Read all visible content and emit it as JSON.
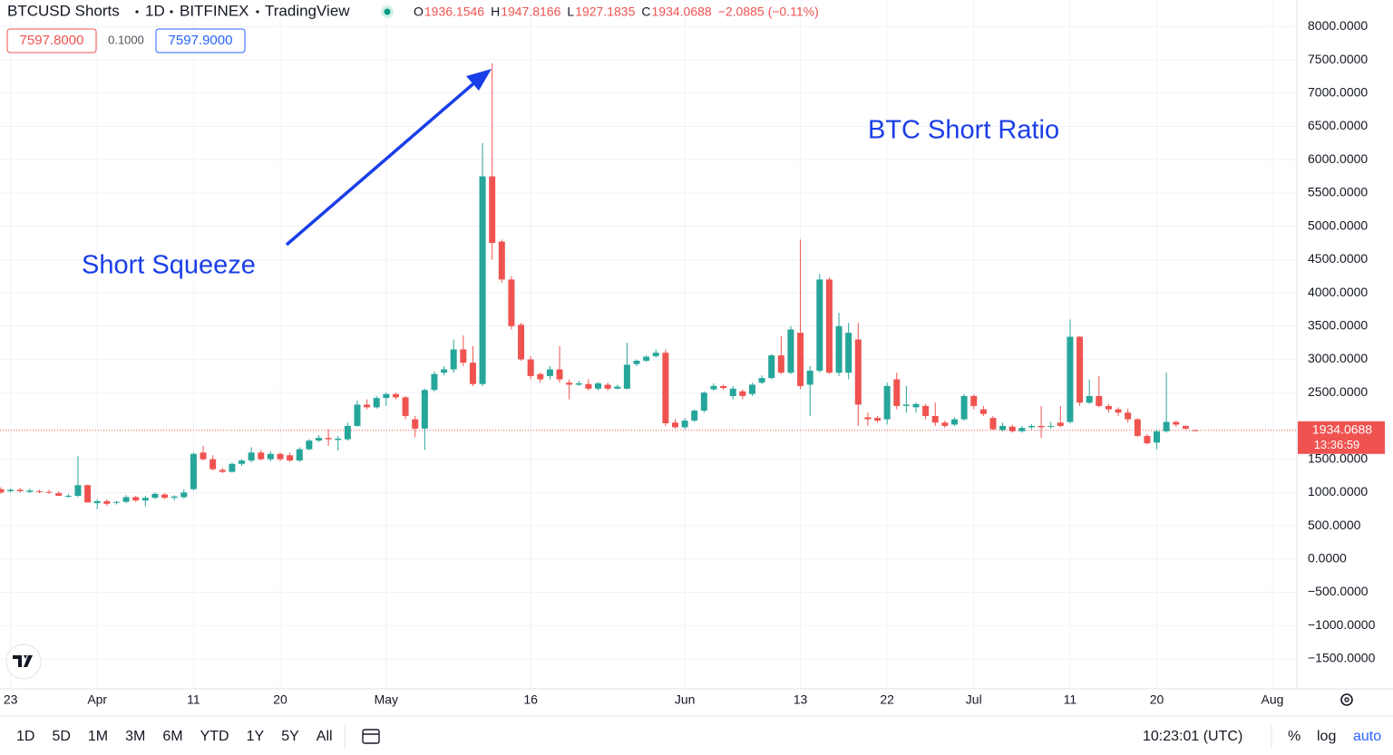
{
  "header": {
    "symbol": "BTCUSD Shorts",
    "interval": "1D",
    "exchange": "BITFINEX",
    "source": "TradingView",
    "ohlc_labels": [
      "O",
      "H",
      "L",
      "C"
    ],
    "change": "−2.0885 (−0.11%)"
  },
  "quote": {
    "bid": "7597.8000",
    "spread": "0.1000",
    "ask": "7597.9000"
  },
  "chart_data": {
    "type": "candlestick",
    "annotations": [
      "Short Squeeze",
      "BTC Short Ratio"
    ],
    "countdown": "13:36:59",
    "categories": [
      null,
      "23",
      null,
      null,
      null,
      null,
      null,
      null,
      null,
      null,
      "Apr",
      null,
      null,
      null,
      null,
      null,
      null,
      null,
      null,
      null,
      "11",
      null,
      null,
      null,
      null,
      null,
      null,
      null,
      null,
      "20",
      null,
      null,
      null,
      null,
      null,
      null,
      null,
      null,
      null,
      null,
      "May",
      null,
      null,
      null,
      null,
      null,
      null,
      null,
      null,
      null,
      null,
      null,
      null,
      null,
      null,
      "16",
      null,
      null,
      null,
      null,
      null,
      null,
      null,
      null,
      null,
      null,
      null,
      null,
      null,
      null,
      null,
      "Jun",
      null,
      null,
      null,
      null,
      null,
      null,
      null,
      null,
      null,
      null,
      null,
      "13",
      null,
      null,
      null,
      null,
      null,
      null,
      null,
      null,
      "22",
      null,
      null,
      null,
      null,
      null,
      null,
      null,
      null,
      "Jul",
      null,
      null,
      null,
      null,
      null,
      null,
      null,
      null,
      null,
      "11",
      null,
      null,
      null,
      null,
      null,
      null,
      null,
      null,
      "20",
      null,
      null,
      null,
      null,
      null,
      null,
      null,
      null,
      null,
      null,
      null,
      "Aug"
    ],
    "open": [
      1050,
      1020,
      1040,
      1010,
      1020,
      1010,
      990,
      940,
      950,
      1110,
      840,
      870,
      850,
      860,
      930,
      880,
      920,
      970,
      920,
      930,
      1050,
      1600,
      1500,
      1340,
      1310,
      1430,
      1480,
      1600,
      1500,
      1580,
      1560,
      1480,
      1650,
      1780,
      1820,
      1790,
      1800,
      2000,
      2320,
      2280,
      2420,
      2480,
      2430,
      2100,
      1960,
      2540,
      2800,
      2850,
      3150,
      2950,
      2630,
      5750,
      4770,
      4200,
      3520,
      3000,
      2780,
      2750,
      2850,
      2650,
      2620,
      2630,
      2560,
      2620,
      2560,
      2560,
      2930,
      2980,
      3050,
      3100,
      2050,
      1980,
      2080,
      2230,
      2550,
      2600,
      2450,
      2520,
      2480,
      2650,
      2720,
      3060,
      2800,
      3400,
      2620,
      2830,
      4200,
      2800,
      2800,
      3300,
      2130,
      2120,
      2100,
      2700,
      2300,
      2280,
      2300,
      2150,
      2050,
      2020,
      2100,
      2450,
      2250,
      2120,
      1940,
      1990,
      1920,
      1980,
      2000,
      1990,
      2050,
      2060,
      3340,
      2350,
      2450,
      2300,
      2250,
      2200,
      2100,
      1850,
      1750,
      1920,
      2060,
      2000,
      1936.1546,
      null,
      null,
      null,
      null,
      null,
      null,
      null,
      null
    ],
    "high": [
      1080,
      1060,
      1070,
      1060,
      1040,
      1040,
      1020,
      980,
      1550,
      1120,
      900,
      900,
      870,
      960,
      950,
      950,
      1000,
      990,
      960,
      1050,
      1600,
      1700,
      1560,
      1370,
      1450,
      1500,
      1680,
      1640,
      1620,
      1600,
      1600,
      1680,
      1800,
      1860,
      1950,
      1850,
      2050,
      2380,
      2400,
      2450,
      2500,
      2500,
      2450,
      2150,
      2560,
      2820,
      2900,
      3300,
      3360,
      3200,
      6250,
      7450,
      4800,
      4250,
      3550,
      3050,
      2800,
      2900,
      3200,
      2700,
      2680,
      2700,
      2660,
      2650,
      2620,
      3250,
      3000,
      3060,
      3150,
      3150,
      2100,
      2120,
      2250,
      2520,
      2640,
      2620,
      2600,
      2550,
      2650,
      2760,
      3080,
      3350,
      3500,
      4800,
      2900,
      4280,
      4230,
      3700,
      3550,
      3550,
      2200,
      2150,
      2650,
      2800,
      2600,
      2350,
      2330,
      2350,
      2080,
      2130,
      2480,
      2470,
      2300,
      2150,
      2050,
      2020,
      2000,
      2030,
      2300,
      2060,
      2300,
      3600,
      3350,
      2700,
      2750,
      2330,
      2280,
      2260,
      2120,
      1880,
      1950,
      2800,
      2080,
      2010,
      1947.8166,
      null,
      null,
      null,
      null,
      null,
      null,
      null,
      null
    ],
    "low": [
      980,
      1000,
      1000,
      990,
      990,
      980,
      950,
      920,
      930,
      850,
      750,
      800,
      820,
      840,
      860,
      790,
      900,
      900,
      880,
      910,
      1030,
      1480,
      1330,
      1290,
      1300,
      1400,
      1450,
      1480,
      1470,
      1470,
      1460,
      1460,
      1630,
      1760,
      1700,
      1630,
      1780,
      1990,
      2250,
      2260,
      2300,
      2400,
      2100,
      1830,
      1640,
      2520,
      2760,
      2800,
      2900,
      2600,
      2600,
      4500,
      4150,
      3450,
      2980,
      2700,
      2650,
      2700,
      2650,
      2400,
      2600,
      2530,
      2530,
      2530,
      2550,
      2550,
      2900,
      2960,
      3030,
      2000,
      1960,
      1950,
      2060,
      2200,
      2530,
      2540,
      2400,
      2400,
      2450,
      2630,
      2700,
      2780,
      2780,
      2550,
      2150,
      2800,
      2780,
      2750,
      2700,
      2000,
      2000,
      2050,
      2020,
      2250,
      2200,
      2200,
      2100,
      2000,
      1970,
      2000,
      2080,
      2250,
      2150,
      1930,
      1920,
      1900,
      1900,
      1950,
      1820,
      1960,
      1980,
      2040,
      2300,
      2330,
      2280,
      2200,
      2150,
      2050,
      1830,
      1720,
      1650,
      1900,
      1990,
      1940,
      1927.1835,
      null,
      null,
      null,
      null,
      null,
      null,
      null,
      null
    ],
    "close": [
      1000,
      1040,
      1020,
      1030,
      1010,
      1000,
      950,
      950,
      1110,
      850,
      870,
      830,
      860,
      930,
      880,
      920,
      980,
      920,
      940,
      1000,
      1580,
      1500,
      1350,
      1310,
      1430,
      1480,
      1600,
      1500,
      1580,
      1500,
      1480,
      1650,
      1780,
      1820,
      1800,
      1810,
      2000,
      2320,
      2280,
      2420,
      2480,
      2430,
      2150,
      1960,
      2540,
      2780,
      2850,
      3150,
      2950,
      2630,
      5750,
      4750,
      4200,
      3500,
      3000,
      2750,
      2700,
      2850,
      2700,
      2620,
      2640,
      2560,
      2640,
      2560,
      2590,
      2920,
      2980,
      3040,
      3100,
      2040,
      1980,
      2080,
      2230,
      2500,
      2600,
      2570,
      2560,
      2450,
      2620,
      2720,
      3060,
      2800,
      3450,
      2600,
      2830,
      4200,
      2800,
      3500,
      3400,
      2320,
      2100,
      2080,
      2600,
      2300,
      2320,
      2330,
      2150,
      2050,
      2000,
      2100,
      2450,
      2300,
      2180,
      1950,
      2000,
      1920,
      1970,
      2000,
      1980,
      2000,
      2000,
      3340,
      2350,
      2450,
      2300,
      2250,
      2200,
      2100,
      1850,
      1740,
      1920,
      2060,
      2020,
      1960,
      1934.0688,
      null,
      null,
      null,
      null,
      null,
      null,
      null,
      null
    ],
    "up_color": "#26a69a",
    "down_color": "#ef5350",
    "ylim": [
      -1950,
      8400
    ],
    "yticks": [
      {
        "value": 8000,
        "label": "8000.0000"
      },
      {
        "value": 7500,
        "label": "7500.0000"
      },
      {
        "value": 7000,
        "label": "7000.0000"
      },
      {
        "value": 6500,
        "label": "6500.0000"
      },
      {
        "value": 6000,
        "label": "6000.0000"
      },
      {
        "value": 5500,
        "label": "5500.0000"
      },
      {
        "value": 5000,
        "label": "5000.0000"
      },
      {
        "value": 4500,
        "label": "4500.0000"
      },
      {
        "value": 4000,
        "label": "4000.0000"
      },
      {
        "value": 3500,
        "label": "3500.0000"
      },
      {
        "value": 3000,
        "label": "3000.0000"
      },
      {
        "value": 2500,
        "label": "2500.0000"
      },
      {
        "value": 1500,
        "label": "1500.0000"
      },
      {
        "value": 1000,
        "label": "1000.0000"
      },
      {
        "value": 500,
        "label": "500.0000"
      },
      {
        "value": 0,
        "label": "0.0000"
      },
      {
        "value": -500,
        "label": "−500.0000"
      },
      {
        "value": -1000,
        "label": "−1000.0000"
      },
      {
        "value": -1500,
        "label": "−1500.0000"
      }
    ],
    "grid": true
  },
  "toolbar": {
    "ranges": [
      "1D",
      "5D",
      "1M",
      "3M",
      "6M",
      "YTD",
      "1Y",
      "5Y",
      "All"
    ],
    "time": "10:23:01 (UTC)",
    "options": [
      "%",
      "log",
      "auto"
    ]
  }
}
